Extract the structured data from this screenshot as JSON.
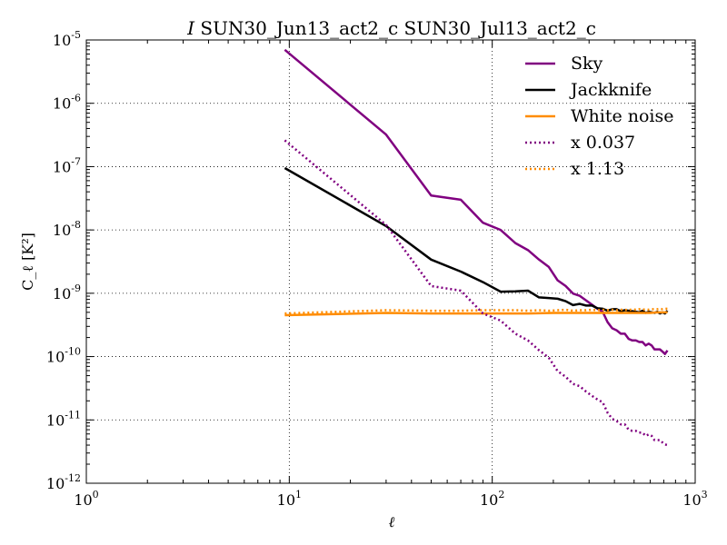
{
  "chart_data": {
    "type": "line",
    "title": {
      "symbol": "I",
      "text": " SUN30_Jun13_act2_c SUN30_Jul13_act2_c"
    },
    "xlabel": "ℓ",
    "ylabel": "C_ℓ [K²]",
    "xscale": "log",
    "yscale": "log",
    "xlim": [
      1,
      1000
    ],
    "ylim": [
      1e-12,
      1e-05
    ],
    "grid": true,
    "legend_position": "top-right",
    "x_ticks": [
      {
        "value": 1,
        "base": "10",
        "exp": "0"
      },
      {
        "value": 10,
        "base": "10",
        "exp": "1"
      },
      {
        "value": 100,
        "base": "10",
        "exp": "2"
      },
      {
        "value": 1000,
        "base": "10",
        "exp": "3"
      }
    ],
    "y_ticks": [
      {
        "value": 1e-12,
        "base": "10",
        "exp": "-12"
      },
      {
        "value": 1e-11,
        "base": "10",
        "exp": "-11"
      },
      {
        "value": 1e-10,
        "base": "10",
        "exp": "-10"
      },
      {
        "value": 1e-09,
        "base": "10",
        "exp": "-9"
      },
      {
        "value": 1e-08,
        "base": "10",
        "exp": "-8"
      },
      {
        "value": 1e-07,
        "base": "10",
        "exp": "-7"
      },
      {
        "value": 1e-06,
        "base": "10",
        "exp": "-6"
      },
      {
        "value": 1e-05,
        "base": "10",
        "exp": "-5"
      }
    ],
    "series": [
      {
        "name": "Sky",
        "color": "#800080",
        "style": "solid",
        "points": [
          [
            9.5,
            7e-06
          ],
          [
            30,
            3.2e-07
          ],
          [
            50,
            3.5e-08
          ],
          [
            70,
            3e-08
          ],
          [
            90,
            1.3e-08
          ],
          [
            110,
            1e-08
          ],
          [
            130,
            6.2e-09
          ],
          [
            150,
            4.8e-09
          ],
          [
            170,
            3.4e-09
          ],
          [
            190,
            2.6e-09
          ],
          [
            210,
            1.6e-09
          ],
          [
            230,
            1.3e-09
          ],
          [
            250,
            9.9e-10
          ],
          [
            270,
            9.1e-10
          ],
          [
            290,
            7.7e-10
          ],
          [
            310,
            6.6e-10
          ],
          [
            330,
            5.7e-10
          ],
          [
            350,
            5.1e-10
          ],
          [
            370,
            3.5e-10
          ],
          [
            390,
            2.8e-10
          ],
          [
            410,
            2.6e-10
          ],
          [
            430,
            2.3e-10
          ],
          [
            450,
            2.3e-10
          ],
          [
            470,
            1.9e-10
          ],
          [
            490,
            1.8e-10
          ],
          [
            510,
            1.8e-10
          ],
          [
            530,
            1.7e-10
          ],
          [
            550,
            1.7e-10
          ],
          [
            570,
            1.5e-10
          ],
          [
            590,
            1.6e-10
          ],
          [
            610,
            1.5e-10
          ],
          [
            630,
            1.3e-10
          ],
          [
            650,
            1.3e-10
          ],
          [
            670,
            1.3e-10
          ],
          [
            690,
            1.2e-10
          ],
          [
            710,
            1.1e-10
          ],
          [
            730,
            1.25e-10
          ]
        ]
      },
      {
        "name": "Jackknife",
        "color": "#000000",
        "style": "solid",
        "points": [
          [
            9.5,
            9.5e-08
          ],
          [
            30,
            1.15e-08
          ],
          [
            50,
            3.4e-09
          ],
          [
            70,
            2.2e-09
          ],
          [
            90,
            1.5e-09
          ],
          [
            110,
            1.06e-09
          ],
          [
            130,
            1.07e-09
          ],
          [
            150,
            1.1e-09
          ],
          [
            170,
            8.6e-10
          ],
          [
            190,
            8.4e-10
          ],
          [
            210,
            8.2e-10
          ],
          [
            230,
            7.5e-10
          ],
          [
            250,
            6.5e-10
          ],
          [
            270,
            6.8e-10
          ],
          [
            290,
            6.4e-10
          ],
          [
            310,
            6.4e-10
          ],
          [
            330,
            5.8e-10
          ],
          [
            350,
            5.7e-10
          ],
          [
            370,
            5.3e-10
          ],
          [
            390,
            5.6e-10
          ],
          [
            410,
            5.6e-10
          ],
          [
            430,
            5.2e-10
          ],
          [
            450,
            5.4e-10
          ],
          [
            470,
            5.3e-10
          ],
          [
            490,
            5.2e-10
          ],
          [
            510,
            5.1e-10
          ],
          [
            530,
            5e-10
          ],
          [
            550,
            5.3e-10
          ],
          [
            570,
            4.9e-10
          ],
          [
            590,
            5.1e-10
          ],
          [
            610,
            5e-10
          ],
          [
            630,
            4.9e-10
          ],
          [
            650,
            5.1e-10
          ],
          [
            670,
            4.8e-10
          ],
          [
            690,
            5e-10
          ],
          [
            710,
            4.8e-10
          ],
          [
            730,
            5.3e-10
          ]
        ]
      },
      {
        "name": "White noise",
        "color": "#ff8c00",
        "style": "solid",
        "points": [
          [
            9.5,
            4.5e-10
          ],
          [
            30,
            4.9e-10
          ],
          [
            50,
            4.8e-10
          ],
          [
            70,
            4.8e-10
          ],
          [
            90,
            4.8e-10
          ],
          [
            110,
            4.8e-10
          ],
          [
            150,
            4.8e-10
          ],
          [
            200,
            4.9e-10
          ],
          [
            250,
            4.9e-10
          ],
          [
            300,
            4.9e-10
          ],
          [
            350,
            4.9e-10
          ],
          [
            400,
            4.9e-10
          ],
          [
            450,
            4.9e-10
          ],
          [
            500,
            4.9e-10
          ],
          [
            550,
            4.9e-10
          ],
          [
            600,
            4.9e-10
          ],
          [
            650,
            5e-10
          ],
          [
            700,
            5e-10
          ],
          [
            730,
            5e-10
          ]
        ]
      },
      {
        "name": "x 0.037",
        "color": "#800080",
        "style": "dotted",
        "points": [
          [
            9.5,
            2.6e-07
          ],
          [
            30,
            1.2e-08
          ],
          [
            50,
            1.3e-09
          ],
          [
            70,
            1.1e-09
          ],
          [
            90,
            4.8e-10
          ],
          [
            110,
            3.7e-10
          ],
          [
            130,
            2.3e-10
          ],
          [
            150,
            1.8e-10
          ],
          [
            170,
            1.26e-10
          ],
          [
            190,
            9.6e-11
          ],
          [
            210,
            5.9e-11
          ],
          [
            230,
            4.8e-11
          ],
          [
            250,
            3.7e-11
          ],
          [
            270,
            3.4e-11
          ],
          [
            290,
            2.8e-11
          ],
          [
            310,
            2.4e-11
          ],
          [
            330,
            2.1e-11
          ],
          [
            350,
            1.9e-11
          ],
          [
            370,
            1.3e-11
          ],
          [
            390,
            1.04e-11
          ],
          [
            410,
            9.6e-12
          ],
          [
            430,
            8.5e-12
          ],
          [
            450,
            8.5e-12
          ],
          [
            470,
            7e-12
          ],
          [
            490,
            6.7e-12
          ],
          [
            510,
            6.7e-12
          ],
          [
            530,
            6.3e-12
          ],
          [
            550,
            6.3e-12
          ],
          [
            570,
            5.6e-12
          ],
          [
            590,
            5.9e-12
          ],
          [
            610,
            5.6e-12
          ],
          [
            630,
            4.8e-12
          ],
          [
            650,
            4.8e-12
          ],
          [
            670,
            4.8e-12
          ],
          [
            690,
            4.4e-12
          ],
          [
            710,
            4.1e-12
          ],
          [
            730,
            4e-12
          ]
        ]
      },
      {
        "name": "x 1.13",
        "color": "#ff8c00",
        "style": "dotted",
        "points": [
          [
            9.5,
            4.8e-10
          ],
          [
            30,
            5.4e-10
          ],
          [
            50,
            5.3e-10
          ],
          [
            70,
            5.3e-10
          ],
          [
            90,
            5.4e-10
          ],
          [
            110,
            5.4e-10
          ],
          [
            130,
            5.4e-10
          ],
          [
            150,
            5.3e-10
          ],
          [
            170,
            5.4e-10
          ],
          [
            190,
            5.3e-10
          ],
          [
            210,
            5.4e-10
          ],
          [
            230,
            5.5e-10
          ],
          [
            250,
            5.3e-10
          ],
          [
            270,
            5.4e-10
          ],
          [
            290,
            5.4e-10
          ],
          [
            310,
            5.5e-10
          ],
          [
            330,
            5.4e-10
          ],
          [
            350,
            5.5e-10
          ],
          [
            370,
            5.4e-10
          ],
          [
            390,
            5.5e-10
          ],
          [
            410,
            5.4e-10
          ],
          [
            430,
            5.5e-10
          ],
          [
            450,
            5.5e-10
          ],
          [
            470,
            5.4e-10
          ],
          [
            490,
            5.6e-10
          ],
          [
            510,
            5.5e-10
          ],
          [
            530,
            5.6e-10
          ],
          [
            550,
            5.5e-10
          ],
          [
            570,
            5.6e-10
          ],
          [
            590,
            5.5e-10
          ],
          [
            610,
            5.6e-10
          ],
          [
            630,
            5.6e-10
          ],
          [
            650,
            5.6e-10
          ],
          [
            670,
            5.7e-10
          ],
          [
            690,
            5.6e-10
          ],
          [
            710,
            5.7e-10
          ],
          [
            730,
            5.7e-10
          ]
        ]
      }
    ]
  }
}
